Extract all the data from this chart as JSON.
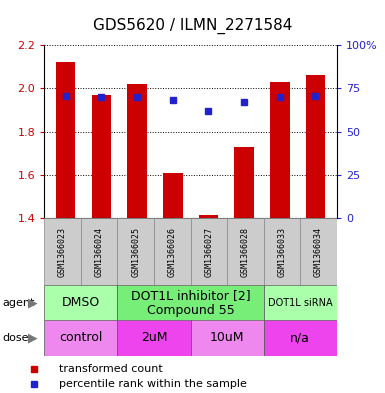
{
  "title": "GDS5620 / ILMN_2271584",
  "samples": [
    "GSM1366023",
    "GSM1366024",
    "GSM1366025",
    "GSM1366026",
    "GSM1366027",
    "GSM1366028",
    "GSM1366033",
    "GSM1366034"
  ],
  "bar_heights": [
    2.12,
    1.97,
    2.02,
    1.61,
    1.415,
    1.73,
    2.03,
    2.06
  ],
  "blue_y": [
    1.965,
    1.96,
    1.96,
    1.945,
    1.895,
    1.935,
    1.962,
    1.965
  ],
  "bar_bottom": 1.4,
  "ylim": [
    1.4,
    2.2
  ],
  "y_left_ticks": [
    1.4,
    1.6,
    1.8,
    2.0,
    2.2
  ],
  "y_right_ticks": [
    0,
    25,
    50,
    75,
    100
  ],
  "y_right_labels": [
    "0",
    "25",
    "50",
    "75",
    "100%"
  ],
  "bar_color": "#cc0000",
  "blue_color": "#2222cc",
  "agent_groups": [
    {
      "label": "DMSO",
      "start": 0,
      "end": 2,
      "color": "#aaffaa",
      "fontsize": 9
    },
    {
      "label": "DOT1L inhibitor [2]\nCompound 55",
      "start": 2,
      "end": 6,
      "color": "#77ee77",
      "fontsize": 9
    },
    {
      "label": "DOT1L siRNA",
      "start": 6,
      "end": 8,
      "color": "#aaffaa",
      "fontsize": 7
    }
  ],
  "dose_groups": [
    {
      "label": "control",
      "start": 0,
      "end": 2,
      "color": "#ee88ee"
    },
    {
      "label": "2uM",
      "start": 2,
      "end": 4,
      "color": "#ee44ee"
    },
    {
      "label": "10uM",
      "start": 4,
      "end": 6,
      "color": "#ee88ee"
    },
    {
      "label": "n/a",
      "start": 6,
      "end": 8,
      "color": "#ee44ee"
    }
  ],
  "legend_items": [
    {
      "color": "#cc0000",
      "label": "transformed count"
    },
    {
      "color": "#2222cc",
      "label": "percentile rank within the sample"
    }
  ],
  "agent_label": "agent",
  "dose_label": "dose",
  "left_tick_color": "#cc0000",
  "right_tick_color": "#2222cc",
  "sample_bg": "#cccccc",
  "title_fontsize": 11,
  "tick_fontsize": 8,
  "sample_fontsize": 6,
  "legend_fontsize": 8
}
